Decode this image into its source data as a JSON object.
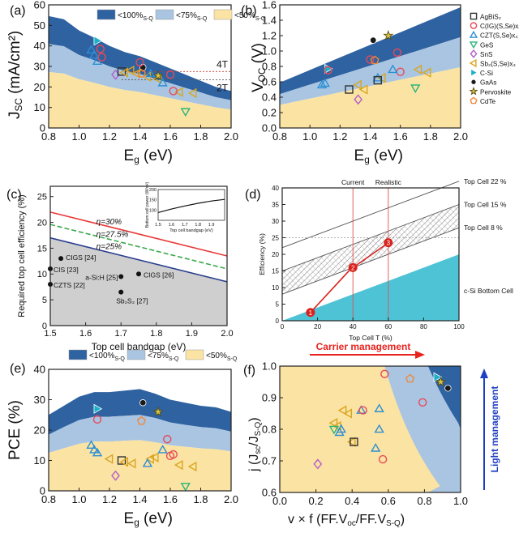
{
  "figure": {
    "legend_band": [
      "<100%",
      "<75%",
      "<50%"
    ],
    "legend_band_sub": "S-Q",
    "colors": {
      "dark": "#2e62a1",
      "mid": "#a9c5e1",
      "light": "#fbe3a3",
      "red": "#e83a3a"
    },
    "materials": [
      {
        "name": "AgBiS₂",
        "shape": "square",
        "color": "#333333"
      },
      {
        "name": "C(IG)(S,Se)x₂",
        "shape": "circle",
        "color": "#e84a5a"
      },
      {
        "name": "CZT(S,Se)x₄",
        "shape": "triangle",
        "color": "#2c8fd6"
      },
      {
        "name": "GeS",
        "shape": "tri-down",
        "color": "#2ab57a"
      },
      {
        "name": "SnS",
        "shape": "diamond",
        "color": "#b35fc7"
      },
      {
        "name": "Sb₂(S,Se)x₃",
        "shape": "tri-left",
        "color": "#d9a520"
      },
      {
        "name": "C-Si",
        "shape": "tri-right",
        "color": "#1bb0c9"
      },
      {
        "name": "GaAs",
        "shape": "dot",
        "color": "#1a1a1a"
      },
      {
        "name": "Pervoskite",
        "shape": "star",
        "color": "#8a7a16"
      },
      {
        "name": "CdTe",
        "shape": "pentagon",
        "color": "#f0883a"
      }
    ]
  },
  "chart_data": [
    {
      "panel": "(a)",
      "type": "scatter",
      "xlabel": "E",
      "xlabel_sub": "g",
      "xlabel_unit": " (eV)",
      "ylabel": "J",
      "ylabel_sub": "SC",
      "ylabel_unit": " (mA/cm²)",
      "xlim": [
        0.8,
        2.0
      ],
      "ylim": [
        0,
        60
      ],
      "xticks": [
        "0.8",
        "1.0",
        "1.2",
        "1.4",
        "1.6",
        "1.8",
        "2.0"
      ],
      "yticks": [
        "0",
        "10",
        "20",
        "30",
        "40",
        "50",
        "60"
      ],
      "bands": {
        "x": [
          0.8,
          0.9,
          1.0,
          1.1,
          1.2,
          1.3,
          1.4,
          1.5,
          1.6,
          1.7,
          1.8,
          1.9,
          2.0
        ],
        "top": [
          54.5,
          53,
          47.5,
          44,
          40,
          37,
          35,
          32,
          29,
          26,
          23,
          20,
          18
        ],
        "mid": [
          40.9,
          39.8,
          35.6,
          33,
          30,
          27.8,
          26.3,
          24,
          21.8,
          19.5,
          17.3,
          15,
          13.5
        ],
        "low": [
          27.3,
          26.5,
          23.8,
          22,
          20,
          18.5,
          17.5,
          16,
          14.5,
          13,
          11.5,
          10,
          9
        ]
      },
      "ref_lines": [
        {
          "label": "4T",
          "y": 27.5
        },
        {
          "label": "2T",
          "y": 23.5
        }
      ],
      "points": [
        {
          "m": "C-Si",
          "x": 1.12,
          "y": 42.5
        },
        {
          "m": "CZT(S,Se)x₄",
          "x": 1.08,
          "y": 38
        },
        {
          "m": "CZT(S,Se)x₄",
          "x": 1.1,
          "y": 35.5
        },
        {
          "m": "CZT(S,Se)x₄",
          "x": 1.12,
          "y": 32.5
        },
        {
          "m": "C(IG)(S,Se)x₂",
          "x": 1.14,
          "y": 38.5
        },
        {
          "m": "C(IG)(S,Se)x₂",
          "x": 1.15,
          "y": 34.5
        },
        {
          "m": "SnS",
          "x": 1.24,
          "y": 26
        },
        {
          "m": "AgBiS₂",
          "x": 1.28,
          "y": 27.5
        },
        {
          "m": "GaAs",
          "x": 1.42,
          "y": 29.5
        },
        {
          "m": "Sb₂(S,Se)x₃",
          "x": 1.3,
          "y": 27
        },
        {
          "m": "Sb₂(S,Se)x₃",
          "x": 1.34,
          "y": 28
        },
        {
          "m": "Sb₂(S,Se)x₃",
          "x": 1.38,
          "y": 26.5
        },
        {
          "m": "Sb₂(S,Se)x₃",
          "x": 1.45,
          "y": 25
        },
        {
          "m": "Sb₂(S,Se)x₃",
          "x": 1.52,
          "y": 24
        },
        {
          "m": "Sb₂(S,Se)x₃",
          "x": 1.66,
          "y": 17.5
        },
        {
          "m": "Sb₂(S,Se)x₃",
          "x": 1.75,
          "y": 17
        },
        {
          "m": "Pervoskite",
          "x": 1.52,
          "y": 25.5
        },
        {
          "m": "CdTe",
          "x": 1.41,
          "y": 26.5
        },
        {
          "m": "C(IG)(S,Se)x₂",
          "x": 1.4,
          "y": 32
        },
        {
          "m": "C(IG)(S,Se)x₂",
          "x": 1.6,
          "y": 26
        },
        {
          "m": "C(IG)(S,Se)x₂",
          "x": 1.62,
          "y": 18
        },
        {
          "m": "CZT(S,Se)x₄",
          "x": 1.47,
          "y": 26.5
        },
        {
          "m": "CZT(S,Se)x₄",
          "x": 1.55,
          "y": 22
        },
        {
          "m": "GeS",
          "x": 1.7,
          "y": 8
        }
      ]
    },
    {
      "panel": "(b)",
      "type": "scatter",
      "xlabel": "E",
      "xlabel_sub": "g",
      "xlabel_unit": " (eV)",
      "ylabel": "V",
      "ylabel_sub": "OC",
      "ylabel_unit": " (V)",
      "xlim": [
        0.8,
        2.0
      ],
      "ylim": [
        0,
        1.6
      ],
      "xticks": [
        "0.8",
        "1.0",
        "1.2",
        "1.4",
        "1.6",
        "1.8",
        "2.0"
      ],
      "yticks": [
        "0.0",
        "0.2",
        "0.4",
        "0.6",
        "0.8",
        "1.0",
        "1.2",
        "1.4",
        "1.6"
      ],
      "bands": {
        "x": [
          0.8,
          2.0
        ],
        "top": [
          0.59,
          1.57
        ],
        "mid": [
          0.44,
          1.18
        ],
        "low": [
          0.3,
          0.79
        ]
      },
      "points": [
        {
          "m": "C-Si",
          "x": 1.12,
          "y": 0.77
        },
        {
          "m": "C(IG)(S,Se)x₂",
          "x": 1.12,
          "y": 0.75
        },
        {
          "m": "CZT(S,Se)x₄",
          "x": 1.08,
          "y": 0.56
        },
        {
          "m": "CZT(S,Se)x₄",
          "x": 1.1,
          "y": 0.58
        },
        {
          "m": "AgBiS₂",
          "x": 1.26,
          "y": 0.5
        },
        {
          "m": "SnS",
          "x": 1.32,
          "y": 0.37
        },
        {
          "m": "Sb₂(S,Se)x₃",
          "x": 1.32,
          "y": 0.56
        },
        {
          "m": "Sb₂(S,Se)x₃",
          "x": 1.36,
          "y": 0.5
        },
        {
          "m": "Sb₂(S,Se)x₃",
          "x": 1.48,
          "y": 0.65
        },
        {
          "m": "Sb₂(S,Se)x₃",
          "x": 1.72,
          "y": 0.76
        },
        {
          "m": "Sb₂(S,Se)x₃",
          "x": 1.78,
          "y": 0.72
        },
        {
          "m": "GaAs",
          "x": 1.42,
          "y": 1.14
        },
        {
          "m": "Pervoskite",
          "x": 1.52,
          "y": 1.2
        },
        {
          "m": "C(IG)(S,Se)x₂",
          "x": 1.4,
          "y": 0.89
        },
        {
          "m": "C(IG)(S,Se)x₂",
          "x": 1.58,
          "y": 0.98
        },
        {
          "m": "C(IG)(S,Se)x₂",
          "x": 1.6,
          "y": 0.73
        },
        {
          "m": "CdTe",
          "x": 1.43,
          "y": 0.88
        },
        {
          "m": "CZT(S,Se)x₄",
          "x": 1.45,
          "y": 0.65
        },
        {
          "m": "CZT(S,Se)x₄",
          "x": 1.55,
          "y": 0.76
        },
        {
          "m": "AgBiS₂",
          "x": 1.45,
          "y": 0.62
        },
        {
          "m": "GeS",
          "x": 1.7,
          "y": 0.52
        }
      ]
    },
    {
      "panel": "(c)",
      "type": "line",
      "xlabel": "Top cell bandgap (eV)",
      "ylabel": "Required top cell efficiency (%)",
      "xlim": [
        1.5,
        2.0
      ],
      "ylim": [
        0,
        27
      ],
      "xticks": [
        "1.5",
        "1.6",
        "1.7",
        "1.8",
        "1.9",
        "2.0"
      ],
      "yticks": [
        "0",
        "5",
        "10",
        "15",
        "20",
        "25"
      ],
      "series": [
        {
          "name": "η=30%",
          "x": [
            1.5,
            2.0
          ],
          "y": [
            22,
            13.5
          ],
          "color": "#e83a3a",
          "dash": false
        },
        {
          "name": "η=27.5%",
          "x": [
            1.5,
            2.0
          ],
          "y": [
            19.6,
            11
          ],
          "color": "#3aa84a",
          "dash": true
        },
        {
          "name": "η=25%",
          "x": [
            1.5,
            2.0
          ],
          "y": [
            17,
            8.5
          ],
          "color": "#2a3f8f",
          "dash": false
        }
      ],
      "points": [
        {
          "label": "CIGS [24]",
          "x": 1.53,
          "y": 13
        },
        {
          "label": "CIS [23]",
          "x": 1.5,
          "y": 11
        },
        {
          "label": "CZTS [22]",
          "x": 1.5,
          "y": 8
        },
        {
          "label": "a-Si:H [25]",
          "x": 1.7,
          "y": 9.5
        },
        {
          "label": "CIGS [26]",
          "x": 1.75,
          "y": 10
        },
        {
          "label": "Sb₂S₃ [27]",
          "x": 1.7,
          "y": 6.5
        }
      ],
      "inset": {
        "xlabel": "Top cell bandgap (eV)",
        "ylabel": "Bottom cell power (W/m²)",
        "xlim": [
          1.5,
          2.0
        ],
        "ylim": [
          50,
          200
        ],
        "xticks": [
          "1.5",
          "1.6",
          "1.7",
          "1.8",
          "1.9"
        ],
        "yticks": [
          "100",
          "150",
          "200"
        ],
        "x": [
          1.5,
          1.6,
          1.7,
          1.8,
          1.9,
          2.0
        ],
        "y": [
          88,
          105,
          120,
          133,
          144,
          152
        ]
      }
    },
    {
      "panel": "(d)",
      "type": "line",
      "xlabel": "Top Cell T (%)",
      "ylabel": "Efficiency (%)",
      "xlim": [
        0,
        100
      ],
      "ylim": [
        0,
        40
      ],
      "xticks": [
        "0",
        "20",
        "40",
        "60",
        "80",
        "100"
      ],
      "yticks": [
        "0",
        "5",
        "10",
        "15",
        "20",
        "25",
        "30",
        "35",
        "40"
      ],
      "vlines": [
        {
          "label": "Current",
          "x": 40
        },
        {
          "label": "Realistic",
          "x": 60
        }
      ],
      "hline": 25,
      "series": [
        {
          "name": "Top Cell 22 %",
          "x": [
            0,
            100
          ],
          "y": [
            22,
            42
          ]
        },
        {
          "name": "Top Cell 15 %",
          "x": [
            0,
            100
          ],
          "y": [
            15,
            35
          ]
        },
        {
          "name": "Top Cell 8 %",
          "x": [
            0,
            100
          ],
          "y": [
            8,
            28
          ]
        }
      ],
      "bottom": {
        "name": "c-Si Bottom Cell",
        "x": [
          0,
          100
        ],
        "y": [
          0,
          20
        ]
      },
      "steps": [
        {
          "label": "1",
          "x": 16,
          "y": 2.5
        },
        {
          "label": "2",
          "x": 40,
          "y": 16
        },
        {
          "label": "3",
          "x": 60,
          "y": 23.5
        }
      ]
    },
    {
      "panel": "(e)",
      "type": "scatter",
      "xlabel": "E",
      "xlabel_sub": "g",
      "xlabel_unit": " (eV)",
      "ylabel": "PCE (%)",
      "xlim": [
        0.8,
        2.0
      ],
      "ylim": [
        0,
        40
      ],
      "xticks": [
        "0.8",
        "1.0",
        "1.2",
        "1.4",
        "1.6",
        "1.8",
        "2.0"
      ],
      "yticks": [
        "0",
        "10",
        "20",
        "30",
        "40"
      ],
      "bands": {
        "x": [
          0.8,
          0.9,
          1.0,
          1.1,
          1.2,
          1.3,
          1.4,
          1.5,
          1.6,
          1.7,
          1.8,
          1.9,
          2.0
        ],
        "top": [
          25,
          28,
          31,
          32.5,
          32.5,
          33,
          33.5,
          32,
          30,
          29,
          28,
          27.5,
          26
        ],
        "mid": [
          18.5,
          21,
          23.3,
          24.4,
          24.4,
          24.7,
          25,
          24,
          22.5,
          21.7,
          21,
          20.6,
          19.5
        ],
        "low": [
          12.5,
          14,
          15.5,
          16.2,
          16.2,
          16.5,
          16.7,
          16,
          15,
          14.5,
          14,
          13.7,
          13
        ]
      },
      "points": [
        {
          "m": "C-Si",
          "x": 1.12,
          "y": 27
        },
        {
          "m": "GaAs",
          "x": 1.42,
          "y": 29
        },
        {
          "m": "Pervoskite",
          "x": 1.52,
          "y": 26
        },
        {
          "m": "C(IG)(S,Se)x₂",
          "x": 1.12,
          "y": 23.5
        },
        {
          "m": "CdTe",
          "x": 1.41,
          "y": 23
        },
        {
          "m": "CZT(S,Se)x₄",
          "x": 1.08,
          "y": 15
        },
        {
          "m": "CZT(S,Se)x₄",
          "x": 1.1,
          "y": 13.5
        },
        {
          "m": "CZT(S,Se)x₄",
          "x": 1.12,
          "y": 12.5
        },
        {
          "m": "AgBiS₂",
          "x": 1.28,
          "y": 10
        },
        {
          "m": "SnS",
          "x": 1.24,
          "y": 5
        },
        {
          "m": "Sb₂(S,Se)x₃",
          "x": 1.2,
          "y": 10.5
        },
        {
          "m": "Sb₂(S,Se)x₃",
          "x": 1.3,
          "y": 9.5
        },
        {
          "m": "Sb₂(S,Se)x₃",
          "x": 1.35,
          "y": 9
        },
        {
          "m": "Sb₂(S,Se)x₃",
          "x": 1.47,
          "y": 10.5
        },
        {
          "m": "Sb₂(S,Se)x₃",
          "x": 1.5,
          "y": 11
        },
        {
          "m": "Sb₂(S,Se)x₃",
          "x": 1.66,
          "y": 8.5
        },
        {
          "m": "Sb₂(S,Se)x₃",
          "x": 1.75,
          "y": 8
        },
        {
          "m": "CZT(S,Se)x₄",
          "x": 1.45,
          "y": 9
        },
        {
          "m": "CZT(S,Se)x₄",
          "x": 1.55,
          "y": 13.5
        },
        {
          "m": "C(IG)(S,Se)x₂",
          "x": 1.58,
          "y": 17
        },
        {
          "m": "C(IG)(S,Se)x₂",
          "x": 1.6,
          "y": 11.5
        },
        {
          "m": "C(IG)(S,Se)x₂",
          "x": 1.62,
          "y": 12
        },
        {
          "m": "GeS",
          "x": 1.7,
          "y": 1.5
        }
      ]
    },
    {
      "panel": "(f)",
      "type": "scatter",
      "xlabel": "v × f (FF.V",
      "xlabel_sub": "oc",
      "xlabel_mid": "/FF.V",
      "xlabel_sub2": "S-Q",
      "xlabel_end": ")",
      "ylabel": "j (J",
      "ylabel_sub": "sc",
      "ylabel_mid": "/J",
      "ylabel_sub2": "S-Q",
      "ylabel_end": ")",
      "xlim": [
        0,
        1.0
      ],
      "ylim": [
        0.6,
        1.0
      ],
      "xticks": [
        "0.0",
        "0.2",
        "0.4",
        "0.6",
        "0.8",
        "1.0"
      ],
      "yticks": [
        "0.6",
        "0.7",
        "0.8",
        "0.9",
        "1.0"
      ],
      "arrow_x": "Carrier management",
      "arrow_y": "Light management",
      "points": [
        {
          "m": "SnS",
          "x": 0.21,
          "y": 0.69
        },
        {
          "m": "Sb₂(S,Se)x₃",
          "x": 0.3,
          "y": 0.82
        },
        {
          "m": "Sb₂(S,Se)x₃",
          "x": 0.32,
          "y": 0.81
        },
        {
          "m": "Sb₂(S,Se)x₃",
          "x": 0.35,
          "y": 0.86
        },
        {
          "m": "Sb₂(S,Se)x₃",
          "x": 0.38,
          "y": 0.85
        },
        {
          "m": "Sb₂(S,Se)x₃",
          "x": 0.4,
          "y": 0.76
        },
        {
          "m": "CZT(S,Se)x₄",
          "x": 0.33,
          "y": 0.79
        },
        {
          "m": "CZT(S,Se)x₄",
          "x": 0.34,
          "y": 0.8
        },
        {
          "m": "CZT(S,Se)x₄",
          "x": 0.45,
          "y": 0.86
        },
        {
          "m": "CZT(S,Se)x₄",
          "x": 0.53,
          "y": 0.74
        },
        {
          "m": "CZT(S,Se)x₄",
          "x": 0.55,
          "y": 0.8
        },
        {
          "m": "CZT(S,Se)x₄",
          "x": 0.55,
          "y": 0.865
        },
        {
          "m": "AgBiS₂",
          "x": 0.41,
          "y": 0.76
        },
        {
          "m": "GeS",
          "x": 0.3,
          "y": 0.8
        },
        {
          "m": "C(IG)(S,Se)x₂",
          "x": 0.46,
          "y": 0.86
        },
        {
          "m": "C(IG)(S,Se)x₂",
          "x": 0.57,
          "y": 0.705
        },
        {
          "m": "C(IG)(S,Se)x₂",
          "x": 0.58,
          "y": 0.975
        },
        {
          "m": "C(IG)(S,Se)x₂",
          "x": 0.79,
          "y": 0.885
        },
        {
          "m": "CdTe",
          "x": 0.72,
          "y": 0.96
        },
        {
          "m": "C-Si",
          "x": 0.87,
          "y": 0.965
        },
        {
          "m": "Pervoskite",
          "x": 0.89,
          "y": 0.95
        },
        {
          "m": "GaAs",
          "x": 0.93,
          "y": 0.93
        }
      ]
    }
  ]
}
